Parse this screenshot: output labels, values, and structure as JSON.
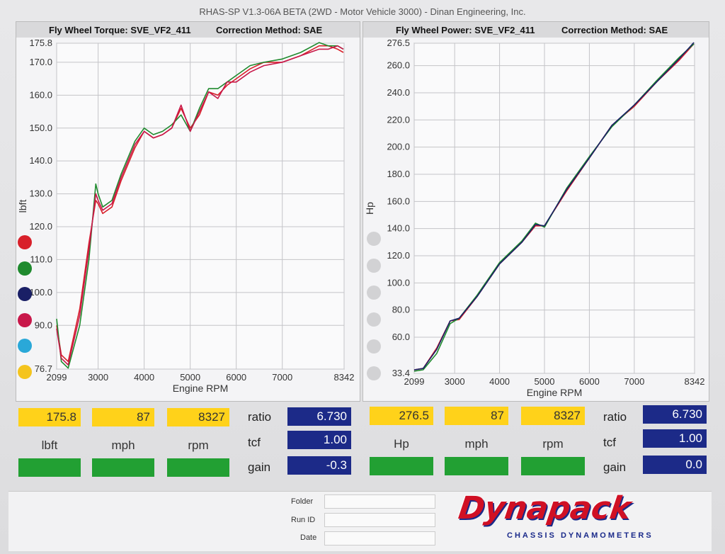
{
  "app_title": "RHAS-SP V1.3-06A BETA  (2WD - Motor Vehicle 3000) - Dinan Engineering, Inc.",
  "colors": {
    "red": "#d8202a",
    "green": "#1f8a2e",
    "navy": "#1a1f66",
    "magenta": "#c8184a",
    "cyan": "#2aa8d8",
    "yellow": "#f4c41e"
  },
  "legend_colors": [
    "red",
    "green",
    "navy",
    "magenta",
    "cyan",
    "yellow"
  ],
  "torque": {
    "header_title": "Fly Wheel Torque: SVE_VF2_411",
    "header_correction": "Correction Method: SAE",
    "stats": {
      "value": "175.8",
      "mph": "87",
      "rpm": "8327",
      "unit_label": "lbft",
      "mph_label": "mph",
      "rpm_label": "rpm",
      "ratio_label": "ratio",
      "ratio": "6.730",
      "tcf_label": "tcf",
      "tcf": "1.00",
      "gain_label": "gain",
      "gain": "-0.3"
    }
  },
  "power": {
    "header_title": "Fly Wheel Power: SVE_VF2_411",
    "header_correction": "Correction Method: SAE",
    "stats": {
      "value": "276.5",
      "mph": "87",
      "rpm": "8327",
      "unit_label": "Hp",
      "mph_label": "mph",
      "rpm_label": "rpm",
      "ratio_label": "ratio",
      "ratio": "6.730",
      "tcf_label": "tcf",
      "tcf": "1.00",
      "gain_label": "gain",
      "gain": "0.0"
    }
  },
  "footer": {
    "folder_label": "Folder",
    "runid_label": "Run ID",
    "date_label": "Date",
    "logo": "Dynapack",
    "logo_sub": "CHASSIS DYNAMOMETERS"
  },
  "chart_data": [
    {
      "type": "line",
      "xlabel": "Engine RPM",
      "ylabel": "lbft",
      "xlim": [
        2099,
        8342
      ],
      "ylim": [
        76.7,
        175.8
      ],
      "x_ticks": [
        "2099",
        "3000",
        "4000",
        "5000",
        "6000",
        "7000",
        "8342"
      ],
      "y_ticks": [
        "76.7",
        "90.0",
        "100.0",
        "110.0",
        "120.0",
        "130.0",
        "140.0",
        "150.0",
        "160.0",
        "170.0",
        "175.8"
      ],
      "series": [
        {
          "color": "red",
          "x": [
            2099,
            2200,
            2350,
            2600,
            2800,
            2950,
            3000,
            3100,
            3300,
            3500,
            3800,
            4000,
            4200,
            4400,
            4600,
            4800,
            5000,
            5200,
            5400,
            5600,
            5800,
            6000,
            6300,
            6600,
            7000,
            7400,
            7800,
            8000,
            8200,
            8327
          ],
          "y": [
            90,
            81,
            79,
            95,
            115,
            128,
            127,
            124,
            126,
            134,
            144,
            149,
            147,
            148,
            150,
            156,
            150,
            154,
            161,
            160,
            163,
            165,
            168,
            170,
            170,
            172,
            175,
            175,
            174,
            173
          ]
        },
        {
          "color": "green",
          "x": [
            2099,
            2200,
            2350,
            2600,
            2800,
            2950,
            3000,
            3100,
            3300,
            3500,
            3800,
            4000,
            4200,
            4400,
            4600,
            4800,
            5000,
            5200,
            5400,
            5600,
            5800,
            6000,
            6300,
            6600,
            7000,
            7400,
            7800,
            8000,
            8200,
            8327
          ],
          "y": [
            92,
            79,
            77,
            90,
            110,
            133,
            130,
            126,
            128,
            136,
            146,
            150,
            148,
            149,
            151,
            154,
            149,
            156,
            162,
            162,
            164,
            166,
            169,
            170,
            171,
            173,
            176,
            175,
            175,
            174
          ]
        },
        {
          "color": "magenta",
          "x": [
            2099,
            2200,
            2350,
            2600,
            2800,
            2950,
            3000,
            3100,
            3300,
            3500,
            3800,
            4000,
            4200,
            4400,
            4600,
            4800,
            5000,
            5200,
            5400,
            5600,
            5800,
            6000,
            6300,
            6600,
            7000,
            7400,
            7800,
            8000,
            8200,
            8327
          ],
          "y": [
            89,
            80,
            78,
            93,
            113,
            130,
            128,
            125,
            127,
            135,
            145,
            149,
            147,
            148,
            150,
            157,
            149,
            155,
            161,
            159,
            164,
            164,
            167,
            169,
            170,
            172,
            174,
            174,
            175,
            174
          ]
        }
      ]
    },
    {
      "type": "line",
      "xlabel": "Engine RPM",
      "ylabel": "Hp",
      "xlim": [
        2099,
        8342
      ],
      "ylim": [
        33.4,
        276.5
      ],
      "x_ticks": [
        "2099",
        "3000",
        "4000",
        "5000",
        "6000",
        "7000",
        "8342"
      ],
      "y_ticks": [
        "33.4",
        "60.0",
        "80.0",
        "100.0",
        "120.0",
        "140.0",
        "160.0",
        "180.0",
        "200.0",
        "220.0",
        "240.0",
        "260.0",
        "276.5"
      ],
      "series": [
        {
          "color": "red",
          "x": [
            2099,
            2300,
            2600,
            2900,
            3100,
            3500,
            4000,
            4500,
            4800,
            5000,
            5500,
            6000,
            6500,
            7000,
            7500,
            8000,
            8327
          ],
          "y": [
            36,
            37,
            52,
            72,
            73,
            90,
            114,
            130,
            142,
            142,
            168,
            192,
            216,
            230,
            248,
            264,
            276
          ]
        },
        {
          "color": "green",
          "x": [
            2099,
            2300,
            2600,
            2900,
            3100,
            3500,
            4000,
            4500,
            4800,
            5000,
            5500,
            6000,
            6500,
            7000,
            7500,
            8000,
            8327
          ],
          "y": [
            35,
            36,
            48,
            70,
            74,
            91,
            115,
            131,
            144,
            141,
            170,
            193,
            215,
            231,
            249,
            266,
            276
          ]
        },
        {
          "color": "navy",
          "x": [
            2099,
            2300,
            2600,
            2900,
            3100,
            3500,
            4000,
            4500,
            4800,
            5000,
            5500,
            6000,
            6500,
            7000,
            7500,
            8000,
            8327
          ],
          "y": [
            36,
            37,
            51,
            72,
            74,
            90,
            114,
            130,
            143,
            142,
            169,
            192,
            216,
            231,
            248,
            265,
            277
          ]
        }
      ]
    }
  ]
}
